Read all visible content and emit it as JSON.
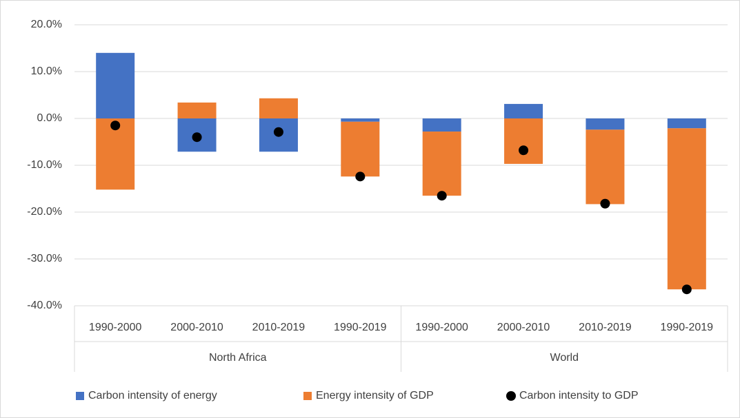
{
  "chart_data": {
    "type": "stacked_bar",
    "groups": [
      "North Africa",
      "World"
    ],
    "categories": [
      "1990-2000",
      "2000-2010",
      "2010-2019",
      "1990-2019",
      "1990-2000",
      "2000-2010",
      "2010-2019",
      "1990-2019"
    ],
    "series": [
      {
        "name": "Carbon intensity of energy",
        "color": "#4472c4",
        "kind": "bar",
        "values": [
          14.0,
          -7.1,
          -7.1,
          -0.7,
          -2.8,
          3.1,
          -2.4,
          -2.1
        ]
      },
      {
        "name": "Energy intensity of GDP",
        "color": "#ed7d31",
        "kind": "bar",
        "values": [
          -15.2,
          3.4,
          4.3,
          -11.7,
          -13.7,
          -9.7,
          -15.9,
          -34.4
        ]
      },
      {
        "name": "Carbon intensity to GDP",
        "color": "#000000",
        "kind": "dot",
        "values": [
          -1.5,
          -4.0,
          -2.9,
          -12.4,
          -16.5,
          -6.8,
          -18.2,
          -36.5
        ]
      }
    ],
    "ylim": [
      -40,
      20
    ],
    "yticks": [
      {
        "value": -40,
        "label": "-40.0%"
      },
      {
        "value": -30,
        "label": "-30.0%"
      },
      {
        "value": -20,
        "label": "-20.0%"
      },
      {
        "value": -10,
        "label": "-10.0%"
      },
      {
        "value": 0,
        "label": "0.0%"
      },
      {
        "value": 10,
        "label": "10.0%"
      },
      {
        "value": 20,
        "label": "20.0%"
      }
    ],
    "grid": true,
    "legend": "bottom"
  }
}
